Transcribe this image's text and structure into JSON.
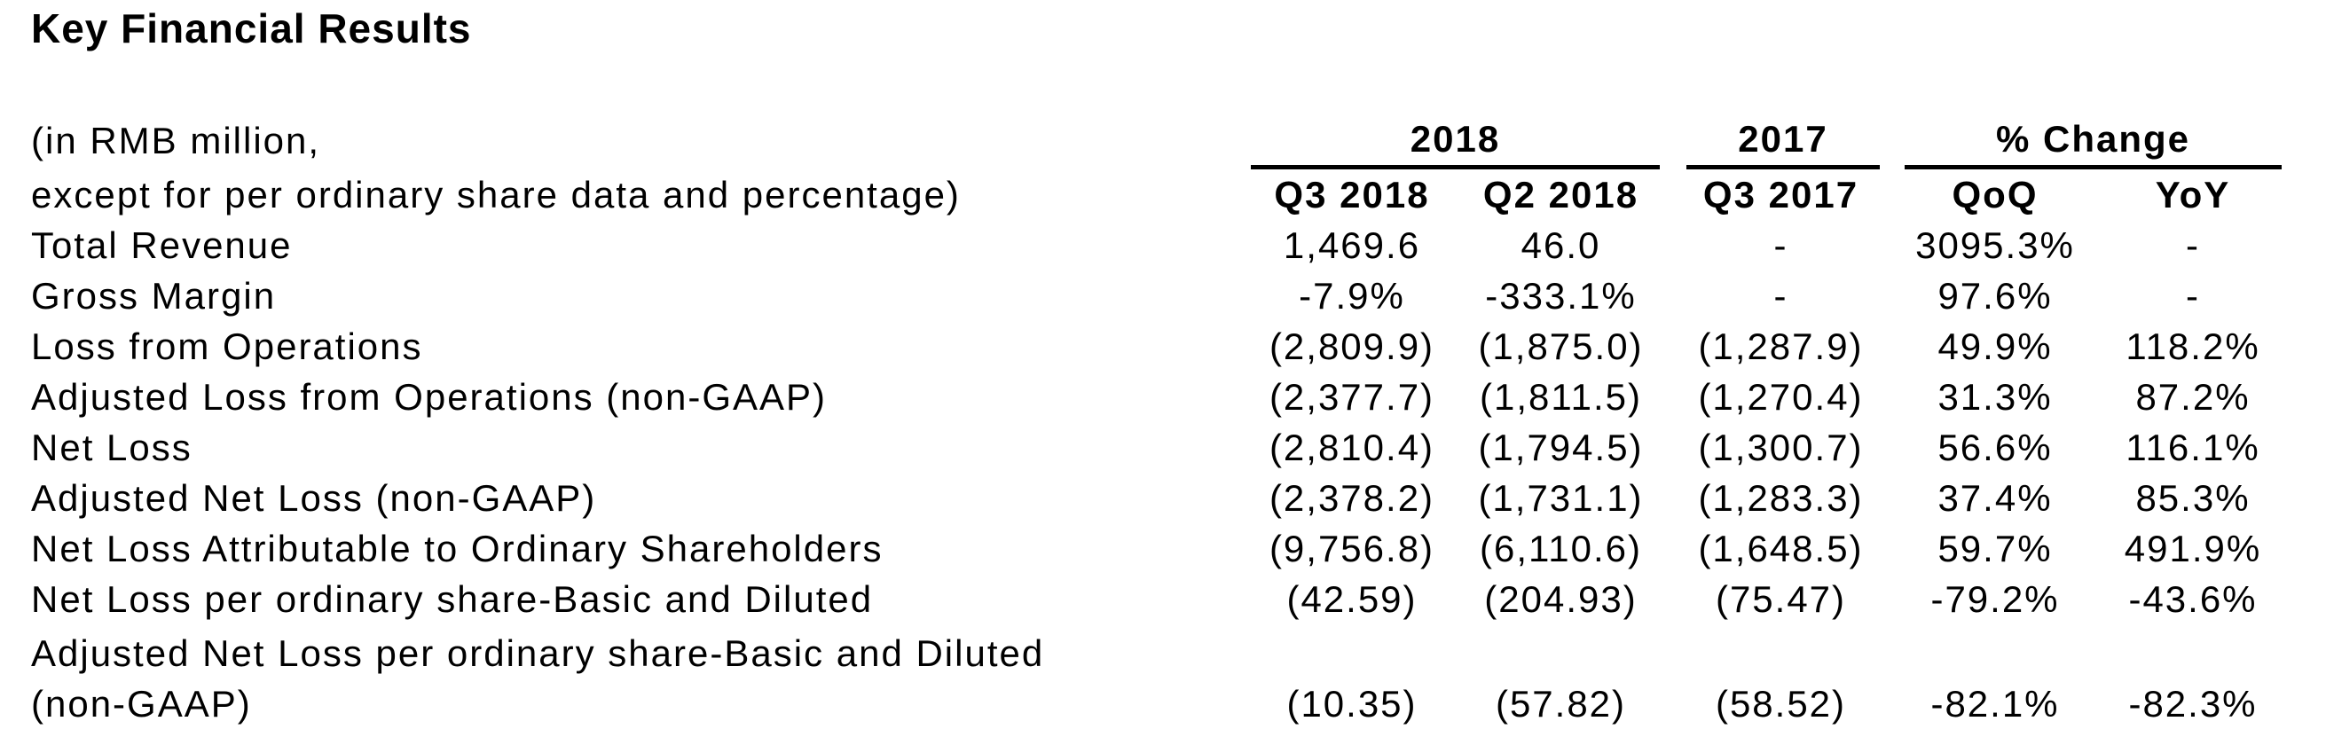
{
  "page": {
    "title": "Key Financial Results"
  },
  "table": {
    "unit_note_line1": "(in RMB million,",
    "unit_note_line2": "except for per ordinary share data and percentage)",
    "column_groups": [
      {
        "label": "2018",
        "span": 2
      },
      {
        "label": "2017",
        "span": 1
      },
      {
        "label": "% Change",
        "span": 2
      }
    ],
    "columns": [
      "Q3 2018",
      "Q2 2018",
      "Q3 2017",
      "QoQ",
      "YoY"
    ],
    "rows": [
      {
        "label": "Total Revenue",
        "values": [
          "1,469.6",
          "46.0",
          "-",
          "3095.3%",
          "-"
        ]
      },
      {
        "label": "Gross Margin",
        "values": [
          "-7.9%",
          "-333.1%",
          "-",
          "97.6%",
          "-"
        ]
      },
      {
        "label": "Loss from Operations",
        "values": [
          "(2,809.9)",
          "(1,875.0)",
          "(1,287.9)",
          "49.9%",
          "118.2%"
        ]
      },
      {
        "label": "Adjusted Loss from Operations (non-GAAP)",
        "values": [
          "(2,377.7)",
          "(1,811.5)",
          "(1,270.4)",
          "31.3%",
          "87.2%"
        ]
      },
      {
        "label": "Net Loss",
        "values": [
          "(2,810.4)",
          "(1,794.5)",
          "(1,300.7)",
          "56.6%",
          "116.1%"
        ]
      },
      {
        "label": "Adjusted Net Loss (non-GAAP)",
        "values": [
          "(2,378.2)",
          "(1,731.1)",
          "(1,283.3)",
          "37.4%",
          "85.3%"
        ]
      },
      {
        "label": "Net Loss Attributable to Ordinary Shareholders",
        "values": [
          "(9,756.8)",
          "(6,110.6)",
          "(1,648.5)",
          "59.7%",
          "491.9%"
        ]
      },
      {
        "label": "Net Loss per ordinary share-Basic and Diluted",
        "values": [
          "(42.59)",
          "(204.93)",
          "(75.47)",
          "-79.2%",
          "-43.6%"
        ]
      },
      {
        "label": "Adjusted Net Loss per ordinary share-Basic and Diluted",
        "label_line2": "(non-GAAP)",
        "values": [
          "(10.35)",
          "(57.82)",
          "(58.52)",
          "-82.1%",
          "-82.3%"
        ]
      }
    ],
    "colors": {
      "text": "#000000",
      "background": "#ffffff",
      "rule": "#000000"
    }
  }
}
